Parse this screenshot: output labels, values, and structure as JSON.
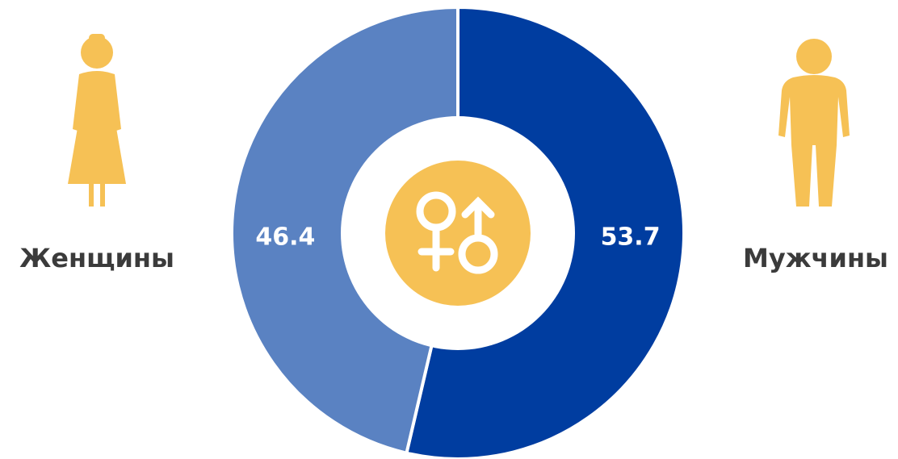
{
  "chart_data": {
    "type": "donut",
    "categories": [
      "Мужчины",
      "Женщины"
    ],
    "values": [
      53.7,
      46.4
    ],
    "colors": [
      "#003da0",
      "#5a82c2"
    ]
  }
}
